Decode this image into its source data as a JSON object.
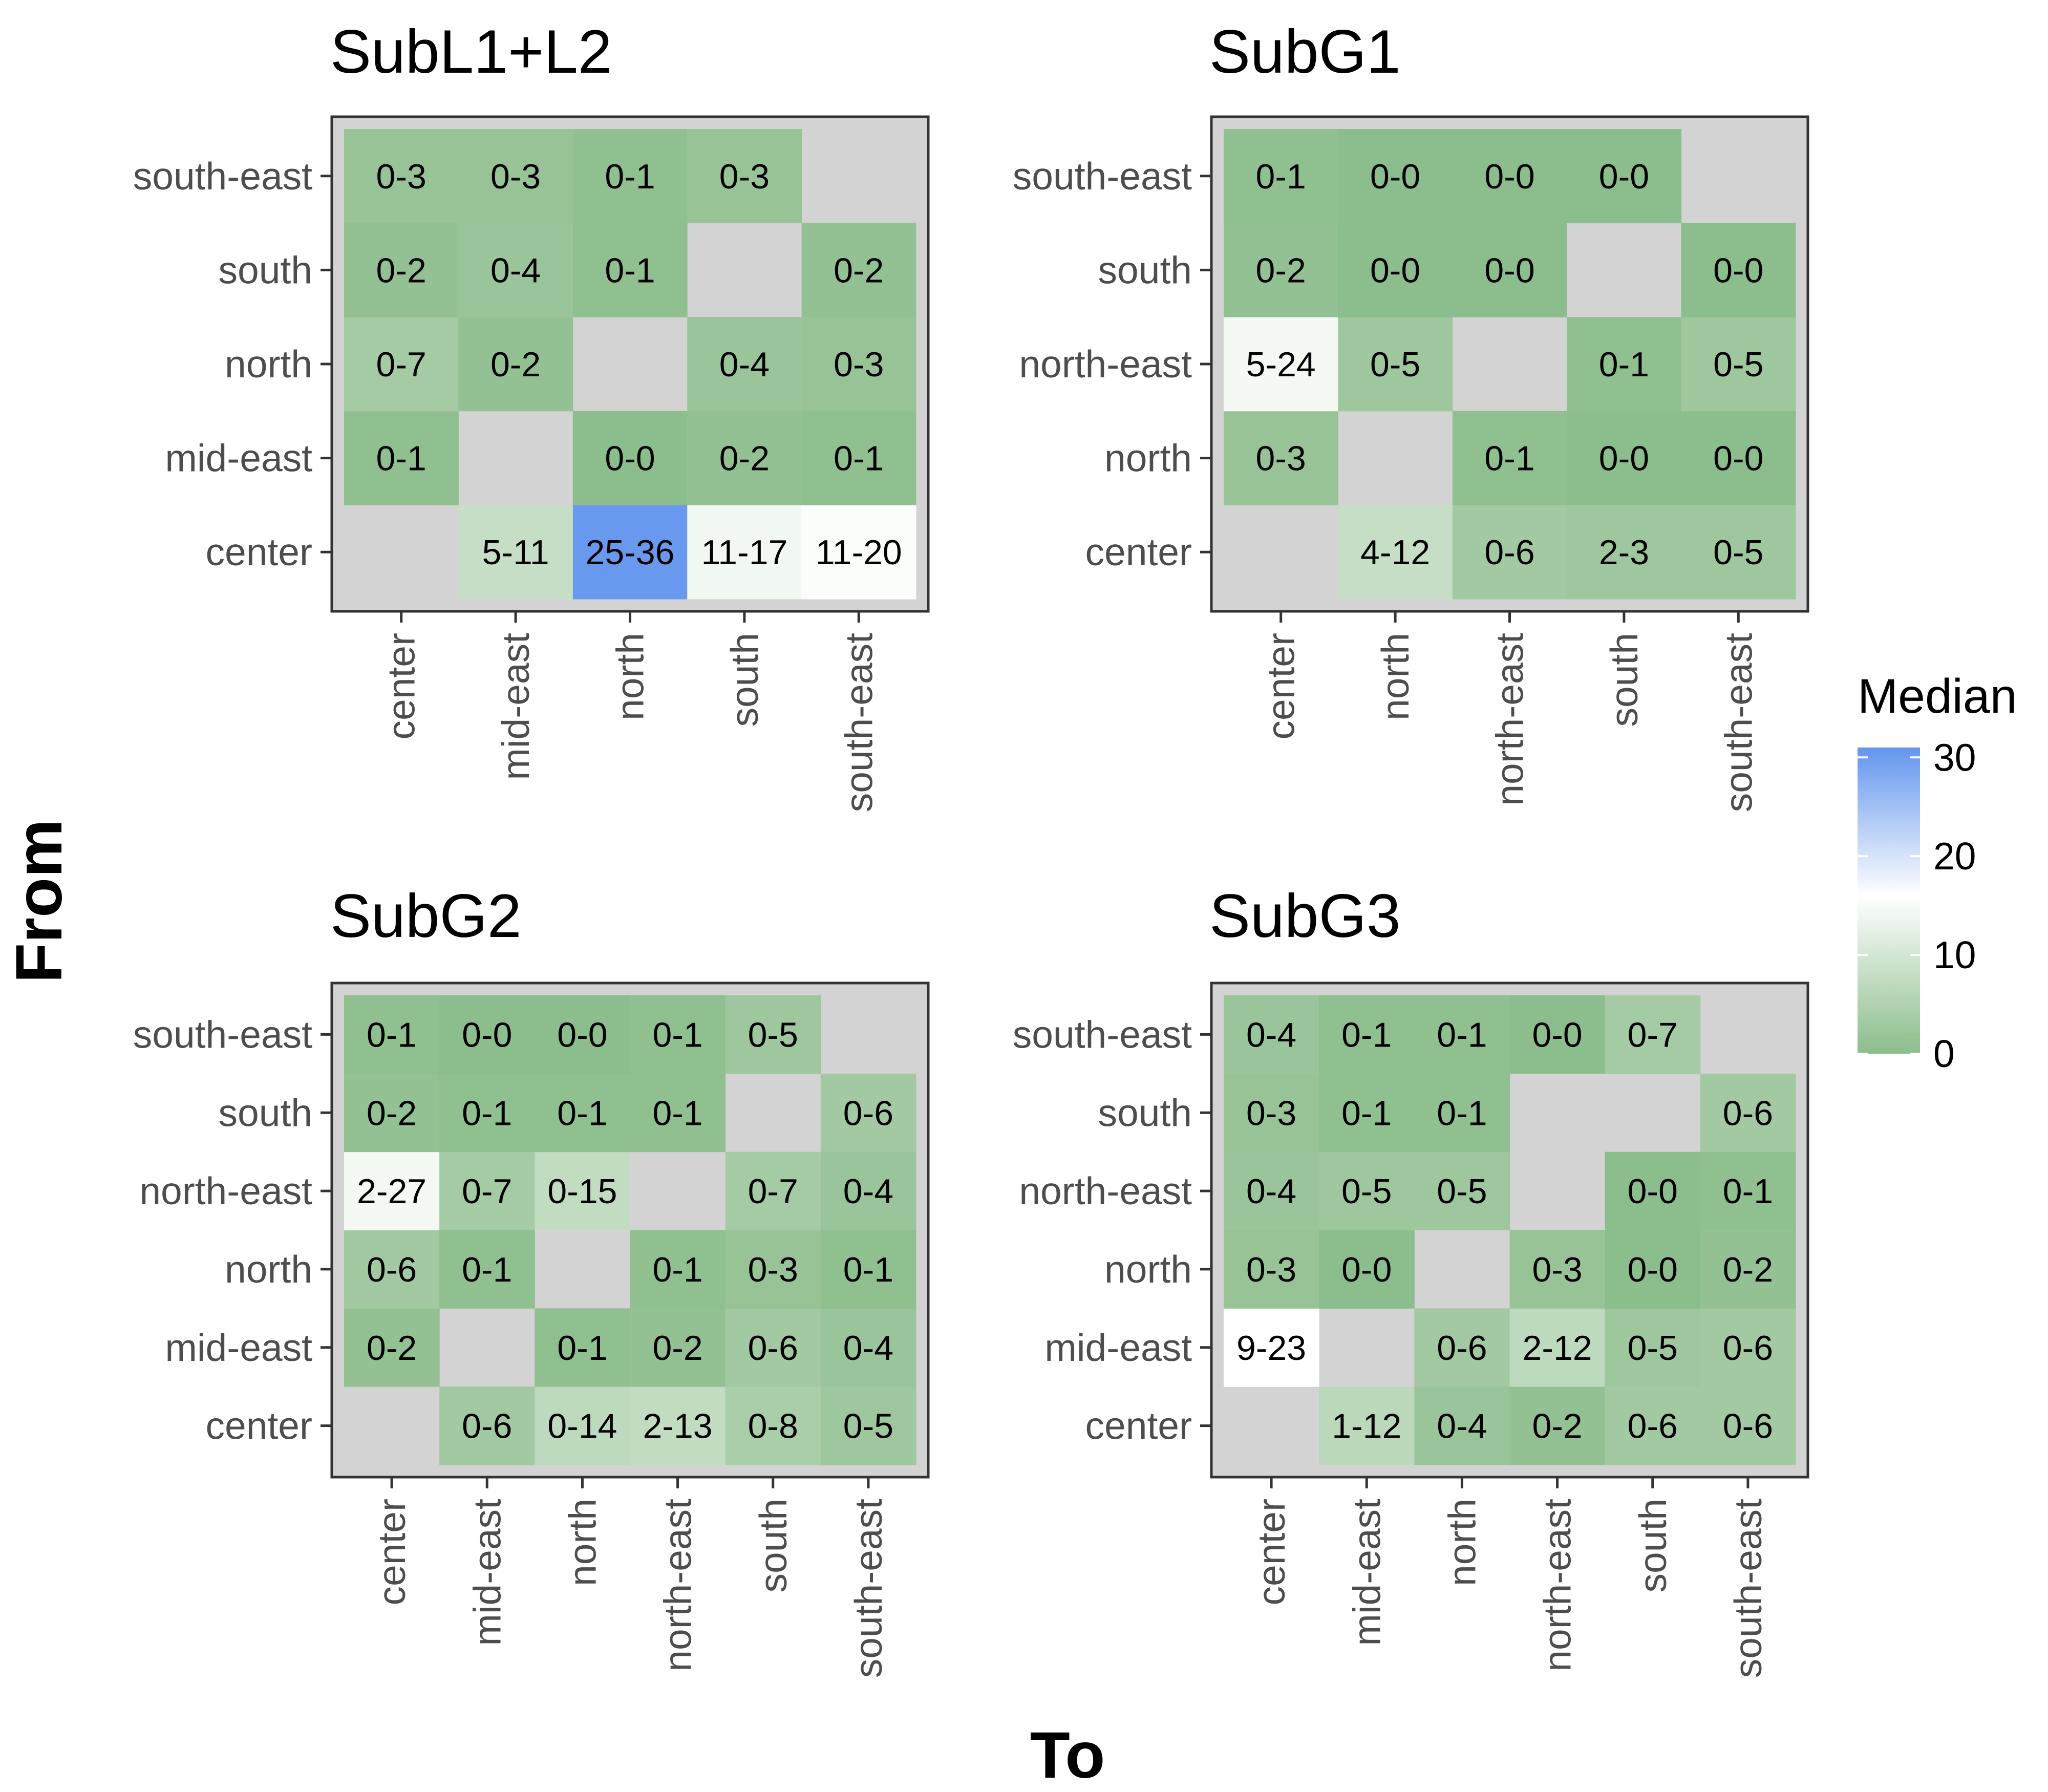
{
  "chart_data": {
    "type": "heatmap",
    "xlabel": "To",
    "ylabel": "From",
    "legend": {
      "title": "Median",
      "ticks": [
        0,
        10,
        20,
        30
      ],
      "range": [
        0,
        31
      ],
      "colors": {
        "low": "#8cbd8c",
        "mid": "#ffffff",
        "high": "#6495ed"
      },
      "midpoint": 16,
      "na_color": "#d3d3d3",
      "position": "right"
    },
    "panels": [
      {
        "title": "SubL1+L2",
        "x_categories": [
          "center",
          "mid-east",
          "north",
          "south",
          "south-east"
        ],
        "y_categories": [
          "center",
          "mid-east",
          "north",
          "south",
          "south-east"
        ],
        "rows": [
          [
            null,
            "5-11",
            "25-36",
            "11-17",
            "11-20"
          ],
          [
            "0-1",
            null,
            "0-0",
            "0-2",
            "0-1"
          ],
          [
            "0-7",
            "0-2",
            null,
            "0-4",
            "0-3"
          ],
          [
            "0-2",
            "0-4",
            "0-1",
            null,
            "0-2"
          ],
          [
            "0-3",
            "0-3",
            "0-1",
            "0-3",
            null
          ]
        ],
        "medians": [
          [
            null,
            8,
            30.5,
            14,
            15.5
          ],
          [
            0.5,
            null,
            0,
            1,
            0.5
          ],
          [
            3.5,
            1,
            null,
            2,
            1.5
          ],
          [
            1,
            2,
            0.5,
            null,
            1
          ],
          [
            1.5,
            1.5,
            0.5,
            1.5,
            null
          ]
        ]
      },
      {
        "title": "SubG1",
        "x_categories": [
          "center",
          "north",
          "north-east",
          "south",
          "south-east"
        ],
        "y_categories": [
          "center",
          "north",
          "north-east",
          "south",
          "south-east"
        ],
        "rows": [
          [
            null,
            "4-12",
            "0-6",
            "2-3",
            "0-5"
          ],
          [
            "0-3",
            null,
            "0-1",
            "0-0",
            "0-0"
          ],
          [
            "5-24",
            "0-5",
            null,
            "0-1",
            "0-5"
          ],
          [
            "0-2",
            "0-0",
            "0-0",
            null,
            "0-0"
          ],
          [
            "0-1",
            "0-0",
            "0-0",
            "0-0",
            null
          ]
        ],
        "medians": [
          [
            null,
            8,
            3,
            2.5,
            2.5
          ],
          [
            1.5,
            null,
            0.5,
            0,
            0
          ],
          [
            14.5,
            2.5,
            null,
            0.5,
            2.5
          ],
          [
            1,
            0,
            0,
            null,
            0
          ],
          [
            0.5,
            0,
            0,
            0,
            null
          ]
        ]
      },
      {
        "title": "SubG2",
        "x_categories": [
          "center",
          "mid-east",
          "north",
          "north-east",
          "south",
          "south-east"
        ],
        "y_categories": [
          "center",
          "mid-east",
          "north",
          "north-east",
          "south",
          "south-east"
        ],
        "rows": [
          [
            null,
            "0-6",
            "0-14",
            "2-13",
            "0-8",
            "0-5"
          ],
          [
            "0-2",
            null,
            "0-1",
            "0-2",
            "0-6",
            "0-4"
          ],
          [
            "0-6",
            "0-1",
            null,
            "0-1",
            "0-3",
            "0-1"
          ],
          [
            "2-27",
            "0-7",
            "0-15",
            null,
            "0-7",
            "0-4"
          ],
          [
            "0-2",
            "0-1",
            "0-1",
            "0-1",
            null,
            "0-6"
          ],
          [
            "0-1",
            "0-0",
            "0-0",
            "0-1",
            "0-5",
            null
          ]
        ],
        "medians": [
          [
            null,
            3,
            7,
            7.5,
            4,
            2.5
          ],
          [
            1,
            null,
            0.5,
            1,
            3,
            2
          ],
          [
            3,
            0.5,
            null,
            0.5,
            1.5,
            0.5
          ],
          [
            14.5,
            3.5,
            7.5,
            null,
            3.5,
            2
          ],
          [
            1,
            0.5,
            0.5,
            0.5,
            null,
            3
          ],
          [
            0.5,
            0,
            0,
            0.5,
            2.5,
            null
          ]
        ]
      },
      {
        "title": "SubG3",
        "x_categories": [
          "center",
          "mid-east",
          "north",
          "north-east",
          "south",
          "south-east"
        ],
        "y_categories": [
          "center",
          "mid-east",
          "north",
          "north-east",
          "south",
          "south-east"
        ],
        "rows": [
          [
            null,
            "1-12",
            "0-4",
            "0-2",
            "0-6",
            "0-6"
          ],
          [
            "9-23",
            null,
            "0-6",
            "2-12",
            "0-5",
            "0-6"
          ],
          [
            "0-3",
            "0-0",
            null,
            "0-3",
            "0-0",
            "0-2"
          ],
          [
            "0-4",
            "0-5",
            "0-5",
            null,
            "0-0",
            "0-1"
          ],
          [
            "0-3",
            "0-1",
            "0-1",
            null,
            null,
            "0-6"
          ],
          [
            "0-4",
            "0-1",
            "0-1",
            "0-0",
            "0-7",
            null
          ]
        ],
        "medians": [
          [
            null,
            6.5,
            2,
            1,
            3,
            3
          ],
          [
            16,
            null,
            3,
            7,
            2.5,
            3
          ],
          [
            1.5,
            0,
            null,
            1.5,
            0,
            1
          ],
          [
            2,
            2.5,
            2.5,
            null,
            0,
            0.5
          ],
          [
            1.5,
            0.5,
            0.5,
            null,
            null,
            3
          ],
          [
            2,
            0.5,
            0.5,
            0,
            3.5,
            null
          ]
        ]
      }
    ]
  }
}
